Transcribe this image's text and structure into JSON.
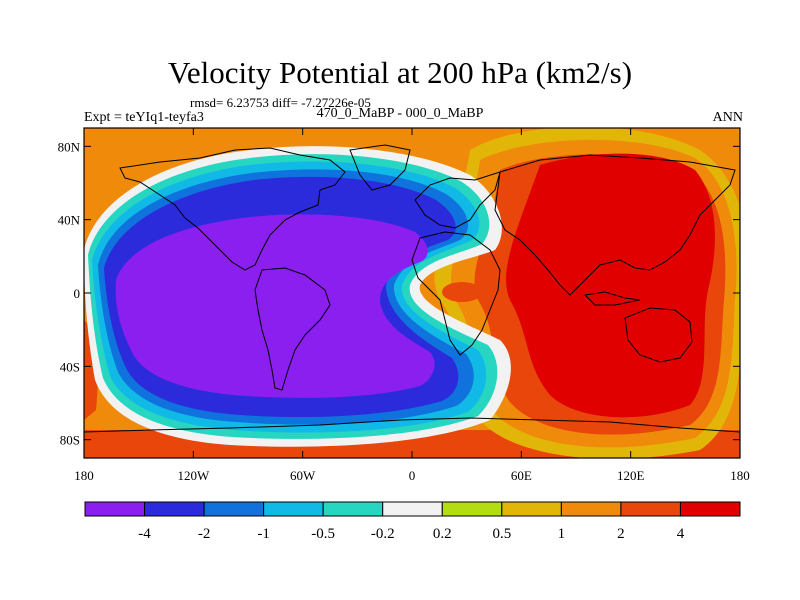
{
  "chart_data": {
    "type": "filled-contour-map",
    "title": "Velocity Potential at 200 hPa (km2/s)",
    "stats_text": "rmsd= 6.23753 diff= -7.27226e-05",
    "left_label": "Expt = teYIq1-teyfa3",
    "center_label": "470_0_MaBP - 000_0_MaBP",
    "right_label": "ANN",
    "x_tick_labels": [
      "180",
      "120W",
      "60W",
      "0",
      "60E",
      "120E",
      "180"
    ],
    "x_range": [
      -180,
      180
    ],
    "y_tick_labels": [
      "80N",
      "40N",
      "0",
      "40S",
      "80S"
    ],
    "y_range": [
      -90,
      90
    ],
    "colorbar_labels": [
      "-4",
      "-2",
      "-1",
      "-0.5",
      "-0.2",
      "0.2",
      "0.5",
      "1",
      "2",
      "4"
    ],
    "colorbar_colors": [
      "#8b1ff0",
      "#2b2bdc",
      "#0f72dd",
      "#11b9e6",
      "#26d6c1",
      "#f2f2f2",
      "#b3dc11",
      "#e2b608",
      "#f08a0a",
      "#e8460b",
      "#e00000"
    ],
    "features": [
      {
        "label": "negative",
        "lon": -40,
        "lat": 0,
        "value": -4
      },
      {
        "label": "positive",
        "lon": 130,
        "lat": 15,
        "value": 4
      }
    ]
  }
}
